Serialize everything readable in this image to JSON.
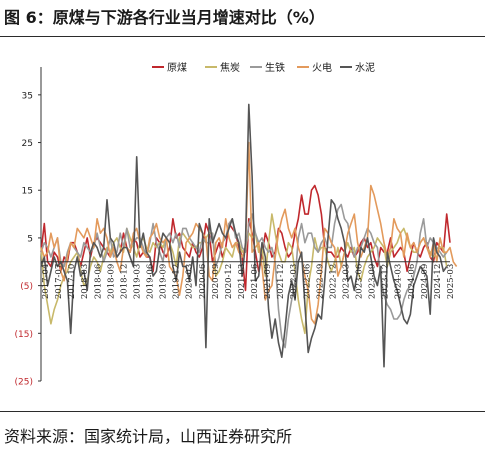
{
  "header": {
    "title": "图 6：原煤与下游各行业当月增速对比（%）"
  },
  "footer": {
    "source": "资料来源：国家统计局，山西证券研究所"
  },
  "chart_data": {
    "type": "line",
    "ylim": [
      -25,
      40
    ],
    "yticks": [
      35,
      25,
      15,
      5,
      -5,
      -15,
      -25
    ],
    "ytick_labels": [
      "35",
      "25",
      "15",
      "5",
      "(5)",
      "(15)",
      "(25)"
    ],
    "xtick_labels": [
      "2017-04",
      "2017-07",
      "2017-10",
      "2018-03",
      "2018-06",
      "2018-09",
      "2018-12",
      "2019-03",
      "2019-06",
      "2019-09",
      "2019-12",
      "2020-03",
      "2020-06",
      "2020-09",
      "2020-12",
      "2021-03",
      "2021-06",
      "2021-09",
      "2021-12",
      "2022-03",
      "2022-06",
      "2022-09",
      "2022-12",
      "2023-03",
      "2023-06",
      "2023-09",
      "2023-12",
      "2024-03",
      "2024-06",
      "2024-09",
      "2024-12",
      "2025-03"
    ],
    "legend_position": "top",
    "grid": false,
    "series": [
      {
        "name": "原煤",
        "color": "#c0282d",
        "values": [
          2,
          8,
          0,
          -1,
          2,
          1,
          -2,
          1,
          0,
          4,
          4,
          2,
          -1,
          2,
          5,
          1,
          4,
          5,
          4,
          3,
          2,
          1,
          3,
          1,
          2,
          6,
          3,
          2,
          5,
          4,
          1,
          2,
          1,
          1,
          -2,
          5,
          4,
          2,
          1,
          3,
          9,
          5,
          6,
          3,
          2,
          1,
          4,
          2,
          1,
          3,
          8,
          6,
          0,
          2,
          4,
          1,
          3,
          8,
          7,
          6,
          3,
          1,
          -6,
          9,
          6,
          2,
          -2,
          1,
          6,
          4,
          1,
          2,
          7,
          6,
          3,
          1,
          2,
          6,
          9,
          14,
          10,
          10,
          15,
          16,
          14,
          10,
          3,
          2,
          2,
          1,
          1,
          3,
          2,
          1,
          3,
          1,
          2,
          4,
          5,
          3,
          4,
          1,
          -1,
          3,
          2,
          2,
          5,
          1,
          2,
          3,
          2,
          -2,
          1,
          4,
          2,
          1,
          3,
          4,
          1,
          0,
          4,
          3,
          2,
          10,
          4
        ]
      },
      {
        "name": "焦炭",
        "color": "#c8b96a",
        "values": [
          3,
          -5,
          -9,
          -13,
          -10,
          -8,
          -5,
          -3,
          -2,
          0,
          1,
          2,
          -2,
          -5,
          -4,
          -1,
          1,
          0,
          -2,
          1,
          3,
          2,
          4,
          5,
          3,
          2,
          7,
          5,
          3,
          1,
          4,
          5,
          3,
          2,
          4,
          3,
          4,
          3,
          5,
          4,
          2,
          -1,
          5,
          6,
          5,
          4,
          3,
          3,
          4,
          4,
          5,
          6,
          6,
          -3,
          -2,
          0,
          3,
          2,
          1,
          4,
          4,
          2,
          3,
          6,
          5,
          6,
          2,
          3,
          -3,
          4,
          10,
          6,
          2,
          0,
          0,
          4,
          3,
          -2,
          -8,
          -12,
          -15,
          -5,
          -1,
          5,
          2,
          3,
          3,
          0,
          -2,
          0,
          3,
          -1,
          2,
          4,
          2,
          3,
          -2,
          -4,
          -1,
          1,
          2,
          3,
          5,
          4,
          3,
          -1,
          2,
          3,
          4,
          6,
          7,
          5,
          3,
          2,
          2,
          4,
          5,
          3,
          2,
          1,
          2,
          3,
          3,
          -1
        ]
      },
      {
        "name": "生铁",
        "color": "#9a9a9a",
        "values": [
          2,
          4,
          3,
          1,
          3,
          5,
          0,
          -1,
          2,
          4,
          3,
          2,
          1,
          4,
          3,
          2,
          3,
          6,
          3,
          0,
          2,
          5,
          1,
          2,
          6,
          3,
          7,
          3,
          4,
          5,
          5,
          3,
          1,
          4,
          8,
          4,
          2,
          0,
          5,
          6,
          4,
          6,
          3,
          7,
          7,
          5,
          4,
          3,
          2,
          5,
          4,
          4,
          6,
          -1,
          1,
          4,
          5,
          8,
          9,
          5,
          6,
          3,
          2,
          8,
          10,
          6,
          4,
          5,
          3,
          2,
          3,
          0,
          -10,
          -16,
          -18,
          -12,
          -8,
          -4,
          5,
          8,
          4,
          6,
          6,
          3,
          2,
          4,
          5,
          3,
          3,
          8,
          11,
          12,
          9,
          8,
          4,
          1,
          3,
          3,
          5,
          7,
          6,
          4,
          3,
          -3,
          -7,
          -9,
          -10,
          -12,
          -12,
          -11,
          -8,
          -6,
          -5,
          -3,
          0,
          6,
          9,
          3,
          5,
          4,
          3,
          2,
          1,
          2
        ]
      },
      {
        "name": "火电",
        "color": "#e39a5c",
        "values": [
          3,
          1,
          2,
          6,
          3,
          5,
          -2,
          -4,
          1,
          4,
          3,
          7,
          6,
          5,
          7,
          5,
          3,
          9,
          6,
          7,
          5,
          1,
          3,
          0,
          -2,
          3,
          3,
          2,
          6,
          7,
          4,
          2,
          1,
          5,
          6,
          8,
          5,
          4,
          5,
          -1,
          -2,
          -3,
          -7,
          -3,
          4,
          5,
          6,
          8,
          7,
          6,
          5,
          -3,
          -4,
          4,
          5,
          3,
          9,
          5,
          3,
          4,
          2,
          1,
          3,
          25,
          2,
          3,
          4,
          -1,
          -8,
          -6,
          -5,
          1,
          6,
          9,
          11,
          7,
          5,
          7,
          3,
          1,
          -3,
          -6,
          -12,
          -13,
          -9,
          -2,
          7,
          6,
          4,
          3,
          -3,
          -1,
          2,
          6,
          8,
          10,
          4,
          1,
          3,
          5,
          16,
          14,
          11,
          8,
          4,
          1,
          3,
          9,
          7,
          6,
          1,
          6,
          3,
          4,
          2,
          4,
          5,
          3,
          1,
          4,
          0,
          5,
          2,
          2,
          3,
          0,
          -1
        ]
      },
      {
        "name": "水泥",
        "color": "#555555",
        "values": [
          -1,
          1,
          -5,
          -2,
          1,
          -1,
          0,
          -2,
          -4,
          -15,
          -2,
          1,
          -3,
          -2,
          -6,
          2,
          4,
          3,
          1,
          3,
          13,
          5,
          4,
          1,
          2,
          3,
          3,
          1,
          -1,
          22,
          3,
          6,
          2,
          1,
          -3,
          -2,
          3,
          6,
          5,
          4,
          -1,
          -4,
          2,
          -1,
          -1,
          -4,
          1,
          -5,
          8,
          6,
          -18,
          9,
          4,
          6,
          8,
          6,
          5,
          7,
          9,
          6,
          4,
          -3,
          4,
          33,
          18,
          -4,
          -3,
          4,
          1,
          -10,
          -16,
          -12,
          -17,
          -20,
          -14,
          -7,
          -4,
          -8,
          0,
          2,
          -9,
          -19,
          -16,
          -14,
          -11,
          -12,
          -4,
          5,
          13,
          12,
          9,
          7,
          4,
          -4,
          -3,
          -6,
          -2,
          3,
          2,
          5,
          1,
          -3,
          -5,
          -1,
          -22,
          2,
          -1,
          -4,
          -6,
          -9,
          -12,
          -13,
          -11,
          -5,
          -3,
          -1,
          -2,
          -3,
          -11,
          5,
          2,
          1,
          -2,
          -1
        ]
      }
    ]
  }
}
